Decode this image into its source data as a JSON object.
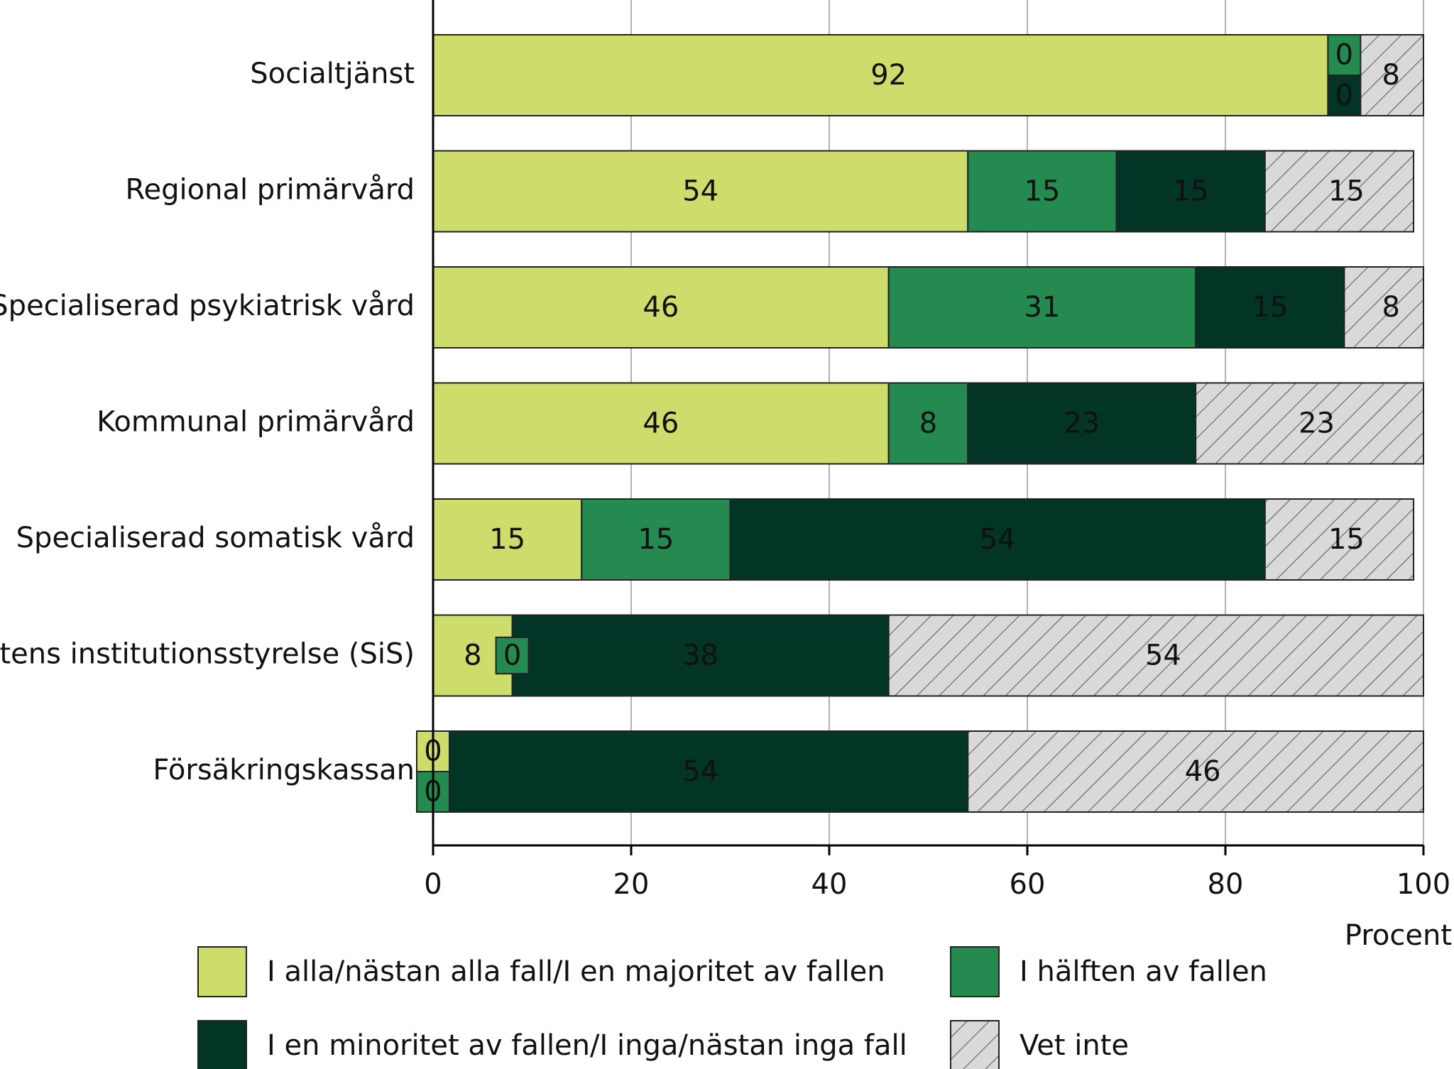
{
  "chart_data": {
    "type": "stacked-barh",
    "xlabel": "Procent",
    "categories": [
      "Socialtjänst",
      "Regional primärvård",
      "Specialiserad psykiatrisk vård",
      "Kommunal primärvård",
      "Specialiserad somatisk vård",
      "Statens institutionsstyrelse (SiS)",
      "Försäkringskassan"
    ],
    "series": [
      {
        "name": "I alla/nästan alla fall/I en majoritet av fallen",
        "color": "#cddc6b",
        "label_color": "#111111",
        "values": [
          92,
          54,
          46,
          46,
          15,
          8,
          0
        ]
      },
      {
        "name": "I hälften av fallen",
        "color": "#248a50",
        "label_color": "#ffffff",
        "values": [
          0,
          15,
          31,
          8,
          15,
          0,
          0
        ]
      },
      {
        "name": "I en minoritet av fallen/I inga/nästan inga fall",
        "color": "#023525",
        "label_color": "#ffffff",
        "values": [
          0,
          15,
          15,
          23,
          54,
          38,
          54
        ]
      },
      {
        "name": "Vet inte",
        "color": "#d9d9d9",
        "hatch": true,
        "label_color": "#111111",
        "values": [
          8,
          15,
          8,
          23,
          15,
          54,
          46
        ]
      }
    ],
    "xlim": [
      0,
      100
    ],
    "xticks": [
      0,
      20,
      40,
      60,
      80,
      100
    ],
    "grid": true
  }
}
